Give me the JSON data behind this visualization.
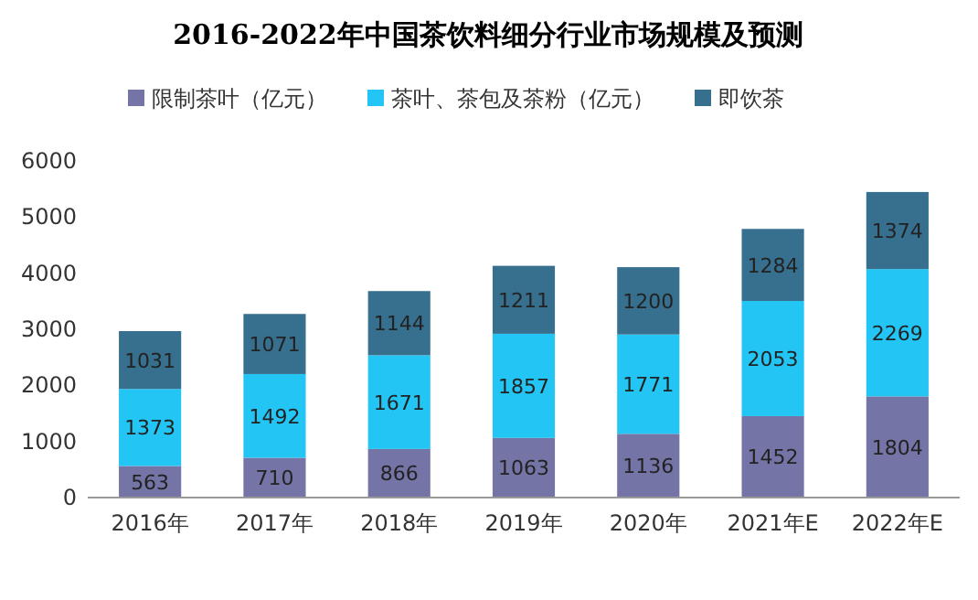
{
  "chart_data": {
    "type": "bar",
    "title": "2016-2022年中国茶饮料细分行业市场规模及预测",
    "stacked": true,
    "data_labels": true,
    "legend": "top",
    "grid": false,
    "categories": [
      "2016年",
      "2017年",
      "2018年",
      "2019年",
      "2020年",
      "2021年E",
      "2022年E"
    ],
    "ylim": [
      0,
      6000
    ],
    "yticks": [
      0,
      1000,
      2000,
      3000,
      4000,
      5000,
      6000
    ],
    "series": [
      {
        "name": "限制茶叶（亿元）",
        "color": "#7474a6",
        "values": [
          563,
          710,
          866,
          1063,
          1136,
          1452,
          1804
        ]
      },
      {
        "name": "茶叶、茶包及茶粉（亿元）",
        "color": "#22c5f3",
        "values": [
          1373,
          1492,
          1671,
          1857,
          1771,
          2053,
          2269
        ]
      },
      {
        "name": "即饮茶",
        "color": "#37708f",
        "values": [
          1031,
          1071,
          1144,
          1211,
          1200,
          1284,
          1374
        ]
      }
    ]
  }
}
